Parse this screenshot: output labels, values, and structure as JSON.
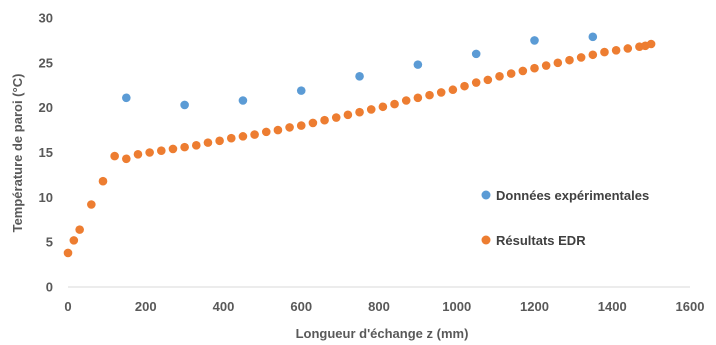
{
  "chart_data": {
    "type": "scatter",
    "xlabel": "Longueur d'échange z (mm)",
    "ylabel": "Température de paroi (°C)",
    "xlim": [
      0,
      1600
    ],
    "ylim": [
      0,
      30
    ],
    "xticks": [
      "0",
      "200",
      "400",
      "600",
      "800",
      "1000",
      "1200",
      "1400",
      "1600"
    ],
    "yticks": [
      "0",
      "5",
      "10",
      "15",
      "20",
      "25",
      "30"
    ],
    "grid": false,
    "legend_position": "right",
    "series": [
      {
        "name": "Données expérimentales",
        "color": "#5B9BD5",
        "points": [
          [
            150,
            21.1
          ],
          [
            300,
            20.3
          ],
          [
            450,
            20.8
          ],
          [
            600,
            21.9
          ],
          [
            750,
            23.5
          ],
          [
            900,
            24.8
          ],
          [
            1050,
            26.0
          ],
          [
            1200,
            27.5
          ],
          [
            1350,
            27.9
          ]
        ]
      },
      {
        "name": "Résultats EDR",
        "color": "#ED7D31",
        "points": [
          [
            0,
            3.8
          ],
          [
            15,
            5.2
          ],
          [
            30,
            6.4
          ],
          [
            60,
            9.2
          ],
          [
            90,
            11.8
          ],
          [
            120,
            14.6
          ],
          [
            150,
            14.3
          ],
          [
            180,
            14.8
          ],
          [
            210,
            15.0
          ],
          [
            240,
            15.2
          ],
          [
            270,
            15.4
          ],
          [
            300,
            15.6
          ],
          [
            330,
            15.8
          ],
          [
            360,
            16.1
          ],
          [
            390,
            16.3
          ],
          [
            420,
            16.6
          ],
          [
            450,
            16.8
          ],
          [
            480,
            17.0
          ],
          [
            510,
            17.3
          ],
          [
            540,
            17.5
          ],
          [
            570,
            17.8
          ],
          [
            600,
            18.0
          ],
          [
            630,
            18.3
          ],
          [
            660,
            18.6
          ],
          [
            690,
            18.9
          ],
          [
            720,
            19.2
          ],
          [
            750,
            19.5
          ],
          [
            780,
            19.8
          ],
          [
            810,
            20.1
          ],
          [
            840,
            20.4
          ],
          [
            870,
            20.8
          ],
          [
            900,
            21.1
          ],
          [
            930,
            21.4
          ],
          [
            960,
            21.7
          ],
          [
            990,
            22.0
          ],
          [
            1020,
            22.4
          ],
          [
            1050,
            22.8
          ],
          [
            1080,
            23.1
          ],
          [
            1110,
            23.5
          ],
          [
            1140,
            23.8
          ],
          [
            1170,
            24.1
          ],
          [
            1200,
            24.4
          ],
          [
            1230,
            24.7
          ],
          [
            1260,
            25.0
          ],
          [
            1290,
            25.3
          ],
          [
            1320,
            25.6
          ],
          [
            1350,
            25.9
          ],
          [
            1380,
            26.2
          ],
          [
            1410,
            26.4
          ],
          [
            1440,
            26.6
          ],
          [
            1470,
            26.8
          ],
          [
            1485,
            26.9
          ],
          [
            1500,
            27.1
          ]
        ]
      }
    ]
  }
}
